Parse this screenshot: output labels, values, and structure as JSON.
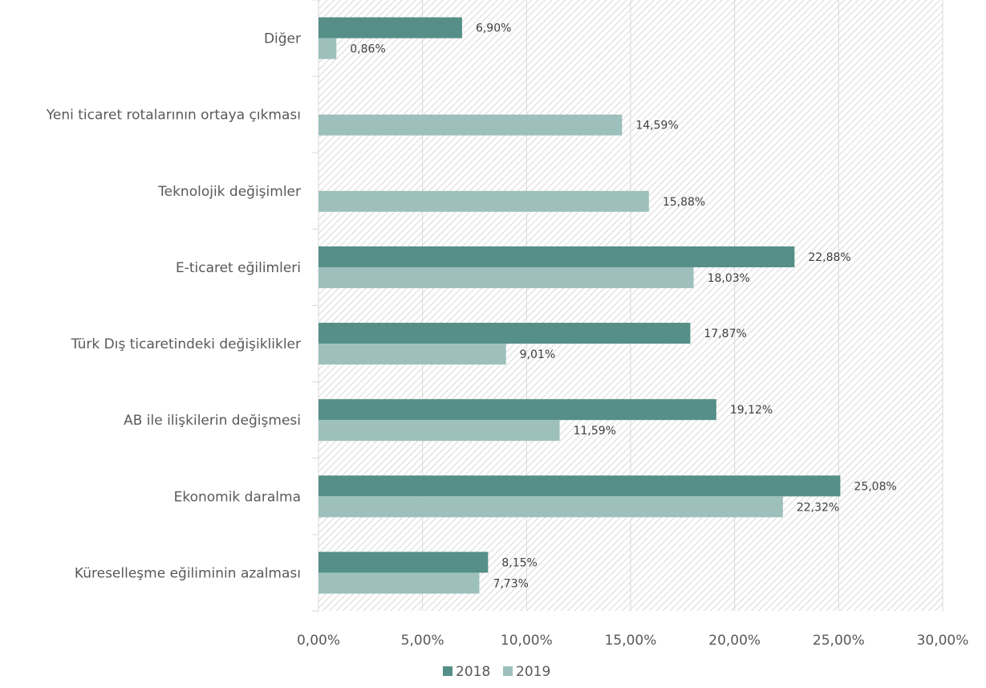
{
  "chart_data": {
    "type": "bar",
    "orientation": "horizontal",
    "categories": [
      "Diğer",
      "Yeni ticaret rotalarının ortaya çıkması",
      "Teknolojik değişimler",
      "E-ticaret eğilimleri",
      "Türk Dış ticaretindeki değişiklikler",
      "AB ile ilişkilerin değişmesi",
      "Ekonomik daralma",
      "Küreselleşme eğiliminin azalması"
    ],
    "series": [
      {
        "name": "2018",
        "color": "#558f87",
        "values": [
          6.9,
          null,
          null,
          22.88,
          17.87,
          19.12,
          25.08,
          8.15
        ],
        "labels": [
          "6,90%",
          "",
          "",
          "22,88%",
          "17,87%",
          "19,12%",
          "25,08%",
          "8,15%"
        ]
      },
      {
        "name": "2019",
        "color": "#9dc0bc",
        "values": [
          0.86,
          14.59,
          15.88,
          18.03,
          9.01,
          11.59,
          22.32,
          7.73
        ],
        "labels": [
          "0,86%",
          "14,59%",
          "15,88%",
          "18,03%",
          "9,01%",
          "11,59%",
          "22,32%",
          "7,73%"
        ]
      }
    ],
    "xlim": [
      0,
      30
    ],
    "xticks": [
      0,
      5,
      10,
      15,
      20,
      25,
      30
    ],
    "xtick_labels": [
      "0,00%",
      "5,00%",
      "10,00%",
      "15,00%",
      "20,00%",
      "25,00%",
      "30,00%"
    ],
    "title": "",
    "xlabel": "",
    "ylabel": "",
    "grid": true,
    "background": "diagonal-hatch",
    "legend_position": "bottom-center"
  }
}
